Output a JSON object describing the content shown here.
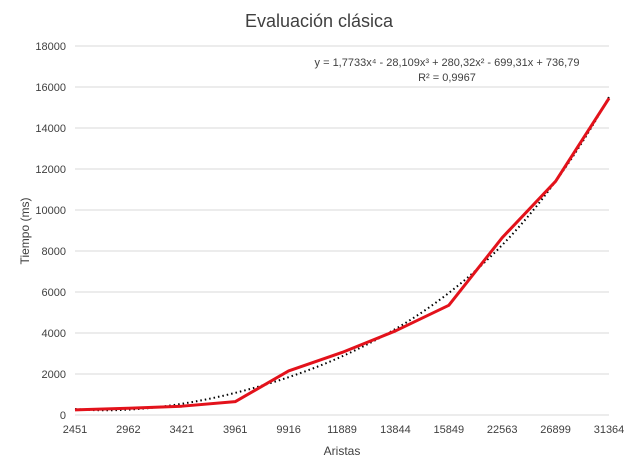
{
  "chart_data": {
    "type": "line",
    "title": "Evaluación clásica",
    "xlabel": "Aristas",
    "ylabel": "Tiempo (ms)",
    "categories": [
      "2451",
      "2962",
      "3421",
      "3961",
      "9916",
      "11889",
      "13844",
      "15849",
      "22563",
      "26899",
      "31364"
    ],
    "series": [
      {
        "values": [
          250,
          330,
          430,
          650,
          2150,
          3050,
          4100,
          5350,
          8650,
          11400,
          15450
        ],
        "color": "#e3121b"
      }
    ],
    "trendline": {
      "type": "polynomial",
      "order": 4,
      "coefficients": [
        1.7733,
        -28.109,
        280.32,
        -699.31,
        736.79
      ],
      "equation": "y = 1,7733x⁴ - 28,109x³ + 280,32x² - 699,31x + 736,79",
      "r_squared": "R² = 0,9967"
    },
    "ylim": [
      0,
      18000
    ],
    "y_ticks": [
      "0",
      "2000",
      "4000",
      "6000",
      "8000",
      "10000",
      "12000",
      "14000",
      "16000",
      "18000"
    ],
    "grid": true,
    "legend": "none"
  }
}
